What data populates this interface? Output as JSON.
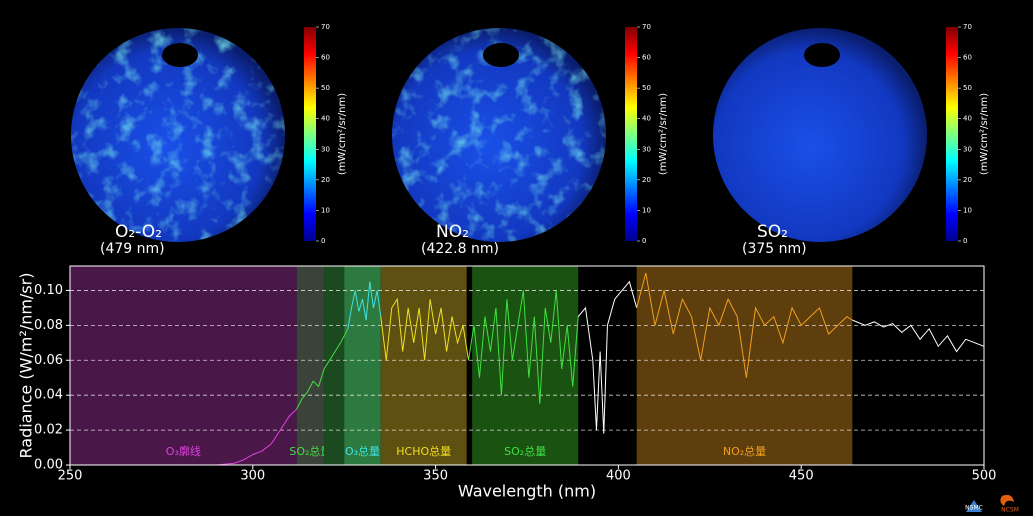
{
  "maps": [
    {
      "label": "O₂-O₂",
      "wavelength": "(479 nm)"
    },
    {
      "label": "NO₂",
      "wavelength": "(422.8 nm)"
    },
    {
      "label": "SO₂",
      "wavelength": "(375 nm)"
    }
  ],
  "colorbar": {
    "label": "(mW/cm²/sr/nm)",
    "ticks": [
      0,
      10,
      20,
      30,
      40,
      50,
      60,
      70
    ],
    "lim": [
      0,
      70
    ]
  },
  "chart_data": {
    "type": "line",
    "xlabel": "Wavelength (nm)",
    "ylabel": "Radiance (W/m²/nm/sr)",
    "xlim": [
      250,
      500
    ],
    "xticks": [
      250,
      300,
      350,
      400,
      450,
      500
    ],
    "ylim": [
      0,
      0.114
    ],
    "yticks": [
      {
        "value": 0,
        "label": "0.00"
      },
      {
        "value": 0.02,
        "label": "0.02"
      },
      {
        "value": 0.04,
        "label": "0.04"
      },
      {
        "value": 0.06,
        "label": "0.06"
      },
      {
        "value": 0.08,
        "label": "0.08"
      },
      {
        "value": 0.1,
        "label": "0.10"
      }
    ],
    "grid": true,
    "bands": [
      {
        "xlim": [
          250,
          312
        ],
        "color": "#4a1848",
        "label": "O₃廓线",
        "label_color": "#e040e0"
      },
      {
        "xlim": [
          312,
          319.5
        ],
        "color": "#3a423a",
        "label": "SO₂总量",
        "label_color": "#40e040"
      },
      {
        "xlim": [
          319.5,
          325
        ],
        "color": "#1c4a20"
      },
      {
        "xlim": [
          325,
          335
        ],
        "color": "#2c7a40",
        "label": "O₃总量",
        "label_color": "#40e0e0"
      },
      {
        "xlim": [
          335,
          358.5
        ],
        "color": "#5e5010",
        "label": "HCHO总量",
        "label_color": "#f0e020"
      },
      {
        "xlim": [
          360,
          389
        ],
        "color": "#1a5212",
        "label": "SO₂总量",
        "label_color": "#40e040"
      },
      {
        "xlim": [
          405,
          464
        ],
        "color": "#5e3e0c",
        "label": "NO₂总量",
        "label_color": "#f0a020"
      }
    ],
    "series": [
      {
        "color": "#e040e0",
        "x": [
          265,
          270,
          275,
          280,
          285,
          290,
          295,
          297.5,
          300,
          302.5,
          305,
          307.5,
          310,
          312
        ],
        "values": [
          0,
          0,
          0,
          0,
          0,
          0,
          0.001,
          0.003,
          0.006,
          0.008,
          0.012,
          0.02,
          0.028,
          0.032
        ]
      },
      {
        "color": "#40e040",
        "x": [
          312,
          313.5,
          315,
          316.5,
          318,
          319.5,
          321,
          322.5,
          324,
          326
        ],
        "values": [
          0.032,
          0.038,
          0.042,
          0.048,
          0.045,
          0.055,
          0.06,
          0.065,
          0.07,
          0.078
        ]
      },
      {
        "color": "#40e0e0",
        "x": [
          326,
          327,
          328,
          329,
          330,
          331,
          332,
          333,
          334,
          335
        ],
        "values": [
          0.078,
          0.09,
          0.1,
          0.088,
          0.095,
          0.083,
          0.105,
          0.09,
          0.1,
          0.085
        ]
      },
      {
        "color": "#f0e020",
        "x": [
          335,
          336.5,
          338,
          339.5,
          341,
          342.5,
          344,
          345.5,
          347,
          348.5,
          350,
          351.5,
          353,
          354.5,
          356,
          357.5,
          359
        ],
        "values": [
          0.085,
          0.06,
          0.09,
          0.095,
          0.065,
          0.09,
          0.07,
          0.09,
          0.06,
          0.095,
          0.075,
          0.09,
          0.065,
          0.085,
          0.07,
          0.08,
          0.06
        ]
      },
      {
        "color": "#40e040",
        "x": [
          359,
          360.5,
          362,
          363.5,
          365,
          366.5,
          368,
          369.5,
          371,
          372.5,
          374,
          375.5,
          377,
          378.5,
          380,
          381.5,
          383,
          384.5,
          386,
          387.5,
          389
        ],
        "values": [
          0.06,
          0.08,
          0.05,
          0.085,
          0.065,
          0.09,
          0.04,
          0.095,
          0.06,
          0.08,
          0.1,
          0.05,
          0.085,
          0.035,
          0.09,
          0.07,
          0.1,
          0.055,
          0.08,
          0.045,
          0.085
        ]
      },
      {
        "color": "#ffffff",
        "x": [
          389,
          391,
          393,
          394,
          395,
          396,
          397,
          399,
          401,
          403,
          405
        ],
        "values": [
          0.085,
          0.09,
          0.06,
          0.02,
          0.065,
          0.018,
          0.08,
          0.095,
          0.1,
          0.105,
          0.09
        ]
      },
      {
        "color": "#f0a020",
        "x": [
          405,
          407.5,
          410,
          412.5,
          415,
          417.5,
          420,
          422.5,
          425,
          427.5,
          430,
          432.5,
          435,
          437.5,
          440,
          442.5,
          445,
          447.5,
          450,
          452.5,
          455,
          457.5,
          460,
          462.5,
          464
        ],
        "values": [
          0.09,
          0.11,
          0.08,
          0.1,
          0.075,
          0.095,
          0.085,
          0.06,
          0.09,
          0.08,
          0.095,
          0.085,
          0.05,
          0.09,
          0.08,
          0.085,
          0.07,
          0.09,
          0.08,
          0.085,
          0.09,
          0.075,
          0.08,
          0.085,
          0.083
        ]
      },
      {
        "color": "#ffffff",
        "x": [
          464,
          467.5,
          470,
          472.5,
          475,
          477.5,
          480,
          482.5,
          485,
          487.5,
          490,
          492.5,
          495,
          497.5,
          500
        ],
        "values": [
          0.083,
          0.08,
          0.082,
          0.079,
          0.081,
          0.076,
          0.08,
          0.072,
          0.078,
          0.068,
          0.074,
          0.065,
          0.072,
          0.07,
          0.068
        ]
      }
    ]
  },
  "logos": [
    "NSMC",
    "NCSM"
  ]
}
